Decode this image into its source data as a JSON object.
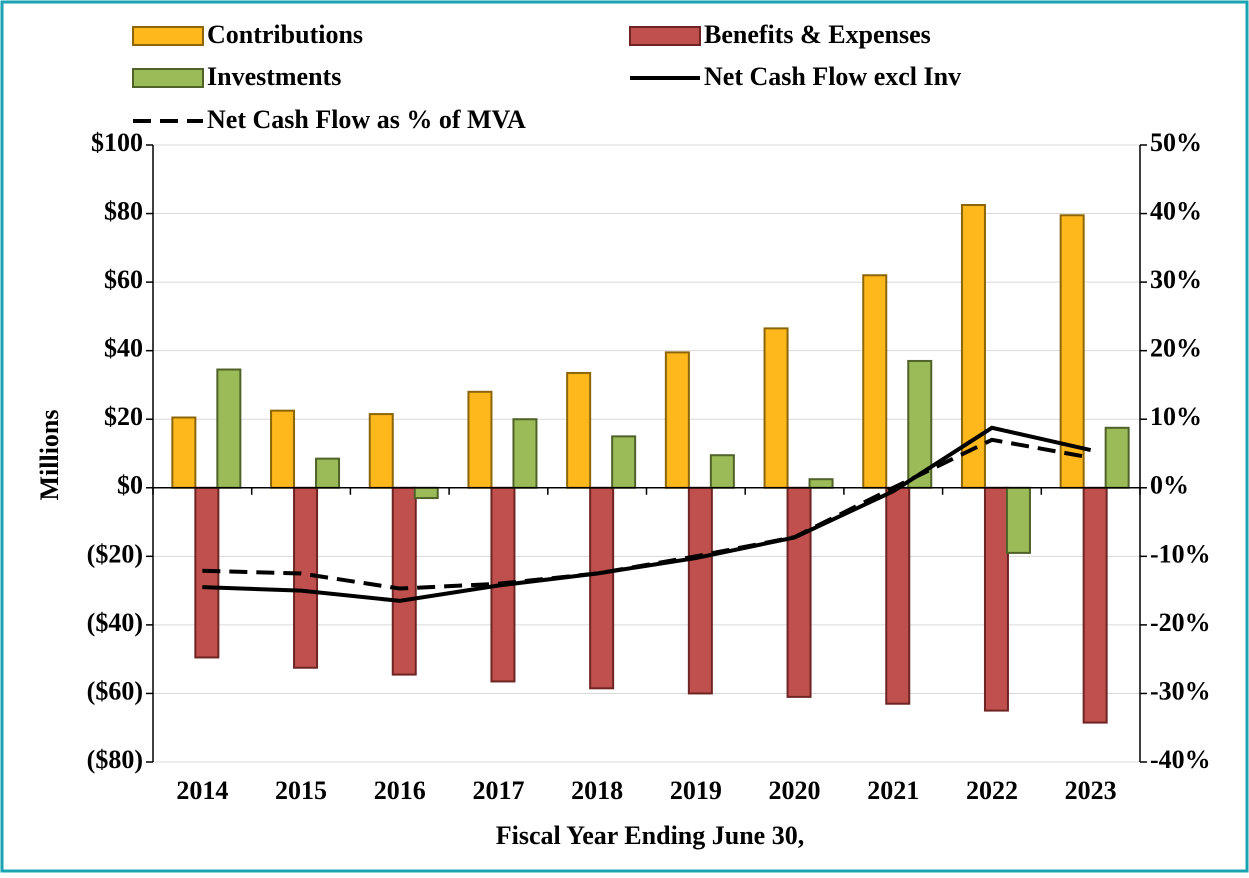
{
  "chart_data": {
    "type": "bar",
    "categories": [
      "2014",
      "2015",
      "2016",
      "2017",
      "2018",
      "2019",
      "2020",
      "2021",
      "2022",
      "2023"
    ],
    "series": [
      {
        "name": "Contributions",
        "type": "bar",
        "color": "#FFB81C",
        "values": [
          20.5,
          22.5,
          21.5,
          28,
          33.5,
          39.5,
          46.5,
          62,
          82.5,
          79.5
        ]
      },
      {
        "name": "Benefits & Expenses",
        "type": "bar",
        "color": "#C0504D",
        "values": [
          -49.5,
          -52.5,
          -54.5,
          -56.5,
          -58.5,
          -60,
          -61,
          -63,
          -65,
          -68.5
        ]
      },
      {
        "name": "Investments",
        "type": "bar",
        "color": "#9BBB59",
        "values": [
          34.5,
          8.5,
          -3,
          20,
          15,
          9.5,
          2.5,
          37,
          -19,
          17.5
        ]
      },
      {
        "name": "Net Cash Flow excl Inv",
        "type": "line",
        "color": "#000000",
        "values": [
          -29,
          -30,
          -33,
          -28.5,
          -25,
          -20.5,
          -14.5,
          -1,
          17.5,
          11
        ]
      },
      {
        "name": "Net Cash Flow as % of MVA",
        "type": "line",
        "dashed": true,
        "axis": "y2",
        "color": "#000000",
        "values": [
          -12.1,
          -12.5,
          -14.7,
          -14,
          -12.5,
          -10,
          -7.2,
          0,
          7,
          4.4
        ]
      }
    ],
    "y_label": "Millions",
    "x_label": "Fiscal Year Ending June 30,",
    "ylim": [
      -80,
      100
    ],
    "yticks": [
      {
        "value": -80,
        "label": "($80)"
      },
      {
        "value": -60,
        "label": "($60)"
      },
      {
        "value": -40,
        "label": "($40)"
      },
      {
        "value": -20,
        "label": "($20)"
      },
      {
        "value": 0,
        "label": "$0"
      },
      {
        "value": 20,
        "label": "$20"
      },
      {
        "value": 40,
        "label": "$40"
      },
      {
        "value": 60,
        "label": "$60"
      },
      {
        "value": 80,
        "label": "$80"
      },
      {
        "value": 100,
        "label": "$100"
      }
    ],
    "y2lim": [
      -40,
      50
    ],
    "y2ticks": [
      {
        "value": -40,
        "label": "-40%"
      },
      {
        "value": -30,
        "label": "-30%"
      },
      {
        "value": -20,
        "label": "-20%"
      },
      {
        "value": -10,
        "label": "-10%"
      },
      {
        "value": 0,
        "label": "0%"
      },
      {
        "value": 10,
        "label": "10%"
      },
      {
        "value": 20,
        "label": "20%"
      },
      {
        "value": 30,
        "label": "30%"
      },
      {
        "value": 40,
        "label": "40%"
      },
      {
        "value": 50,
        "label": "50%"
      }
    ],
    "grid": true,
    "legend": "top"
  }
}
